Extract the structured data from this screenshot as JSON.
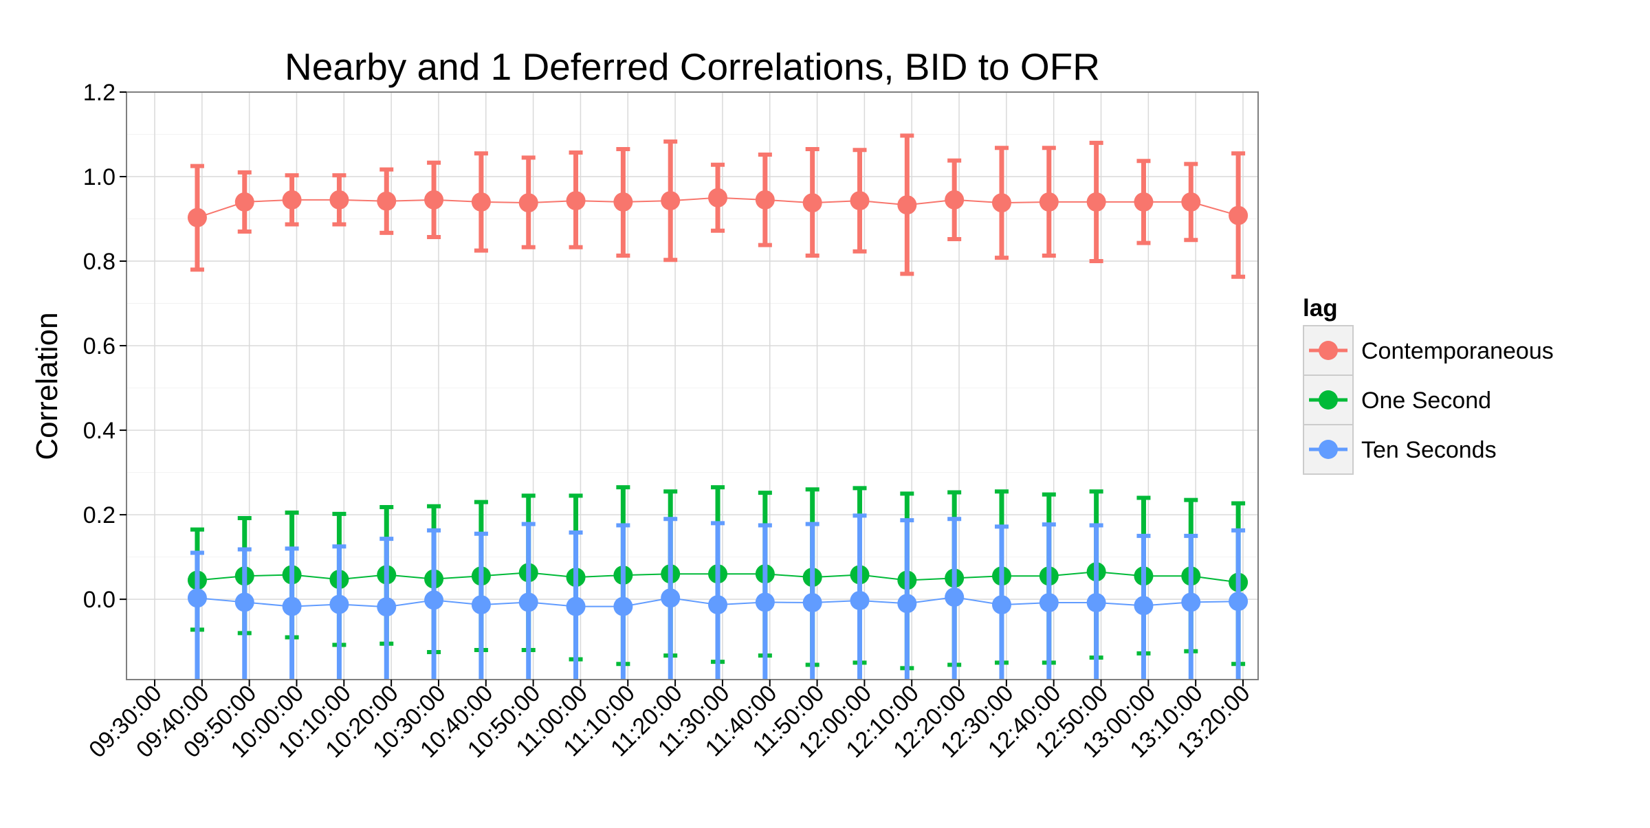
{
  "chart_data": {
    "type": "line",
    "title": "Nearby and 1 Deferred Correlations, BID to OFR",
    "xlabel": "",
    "ylabel": "Correlation",
    "y_ticks": [
      0.0,
      0.2,
      0.4,
      0.6,
      0.8,
      1.0,
      1.2
    ],
    "y_tick_labels": [
      "0.0",
      "0.2",
      "0.4",
      "0.6",
      "0.8",
      "1.0",
      "1.2"
    ],
    "ylim": [
      -0.19,
      1.2
    ],
    "x_ticks": [
      "09:30:00",
      "09:40:00",
      "09:50:00",
      "10:00:00",
      "10:10:00",
      "10:20:00",
      "10:30:00",
      "10:40:00",
      "10:50:00",
      "11:00:00",
      "11:10:00",
      "11:20:00",
      "11:30:00",
      "11:40:00",
      "11:50:00",
      "12:00:00",
      "12:10:00",
      "12:20:00",
      "12:30:00",
      "12:40:00",
      "12:50:00",
      "13:00:00",
      "13:10:00",
      "13:20:00"
    ],
    "x": [
      "09:39:00",
      "09:49:00",
      "09:59:00",
      "10:09:00",
      "10:19:00",
      "10:29:00",
      "10:39:00",
      "10:49:00",
      "10:59:00",
      "11:09:00",
      "11:19:00",
      "11:29:00",
      "11:39:00",
      "11:49:00",
      "11:59:00",
      "12:09:00",
      "12:19:00",
      "12:29:00",
      "12:39:00",
      "12:49:00",
      "12:59:00",
      "13:09:00",
      "13:19:00"
    ],
    "grid": true,
    "legend": {
      "title": "lag",
      "position": "right"
    },
    "series": [
      {
        "name": "Contemporaneous",
        "color": "#F8766D",
        "values": [
          0.903,
          0.94,
          0.945,
          0.945,
          0.942,
          0.945,
          0.94,
          0.938,
          0.943,
          0.94,
          0.943,
          0.95,
          0.945,
          0.938,
          0.943,
          0.933,
          0.945,
          0.938,
          0.94,
          0.94,
          0.94,
          0.94,
          0.908
        ],
        "upper": [
          1.025,
          1.01,
          1.003,
          1.003,
          1.017,
          1.033,
          1.055,
          1.045,
          1.057,
          1.065,
          1.083,
          1.028,
          1.052,
          1.065,
          1.063,
          1.097,
          1.038,
          1.068,
          1.068,
          1.08,
          1.037,
          1.03,
          1.055
        ],
        "lower": [
          0.78,
          0.87,
          0.887,
          0.887,
          0.867,
          0.857,
          0.825,
          0.833,
          0.833,
          0.813,
          0.803,
          0.872,
          0.838,
          0.813,
          0.823,
          0.77,
          0.852,
          0.808,
          0.813,
          0.8,
          0.843,
          0.85,
          0.763
        ]
      },
      {
        "name": "One Second",
        "color": "#00BA38",
        "values": [
          0.045,
          0.055,
          0.058,
          0.047,
          0.058,
          0.048,
          0.055,
          0.063,
          0.052,
          0.057,
          0.06,
          0.06,
          0.06,
          0.052,
          0.058,
          0.045,
          0.05,
          0.055,
          0.055,
          0.065,
          0.055,
          0.055,
          0.04
        ],
        "upper": [
          0.165,
          0.192,
          0.205,
          0.202,
          0.218,
          0.22,
          0.23,
          0.245,
          0.245,
          0.265,
          0.255,
          0.265,
          0.252,
          0.26,
          0.263,
          0.25,
          0.253,
          0.255,
          0.248,
          0.255,
          0.24,
          0.235,
          0.227
        ],
        "lower": [
          -0.072,
          -0.08,
          -0.09,
          -0.108,
          -0.105,
          -0.125,
          -0.12,
          -0.12,
          -0.142,
          -0.153,
          -0.133,
          -0.148,
          -0.133,
          -0.155,
          -0.15,
          -0.163,
          -0.155,
          -0.15,
          -0.15,
          -0.138,
          -0.128,
          -0.123,
          -0.153
        ]
      },
      {
        "name": "Ten Seconds",
        "color": "#619CFF",
        "values": [
          0.003,
          -0.007,
          -0.017,
          -0.012,
          -0.018,
          -0.002,
          -0.013,
          -0.007,
          -0.017,
          -0.017,
          0.003,
          -0.013,
          -0.007,
          -0.008,
          -0.003,
          -0.01,
          0.005,
          -0.013,
          -0.008,
          -0.008,
          -0.015,
          -0.007,
          -0.005
        ],
        "upper": [
          0.11,
          0.118,
          0.12,
          0.125,
          0.143,
          0.163,
          0.155,
          0.178,
          0.158,
          0.175,
          0.19,
          0.18,
          0.175,
          0.178,
          0.198,
          0.187,
          0.19,
          0.172,
          0.177,
          0.175,
          0.15,
          0.15,
          0.163
        ]
      }
    ]
  }
}
